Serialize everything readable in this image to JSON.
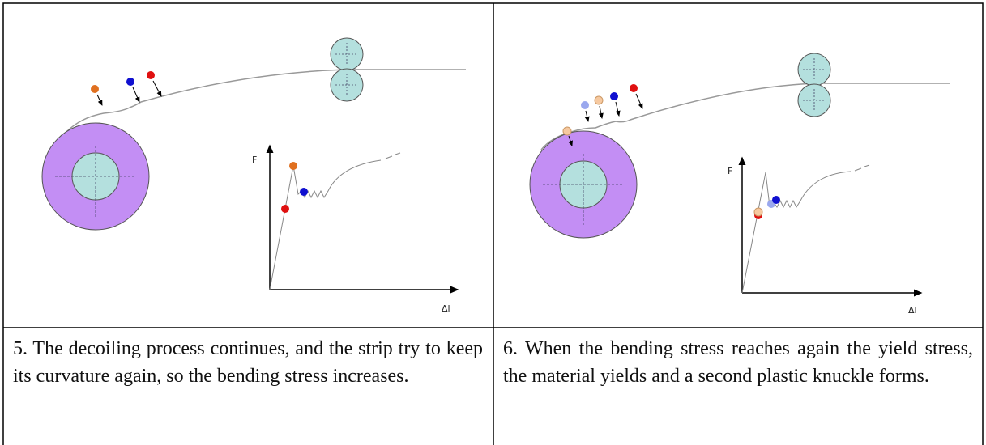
{
  "panels": [
    {
      "diagram": {
        "y_axis_label": "F",
        "x_axis_label": "Δl"
      },
      "caption": "5. The decoiling process continues, and the strip try to keep its curvature again, so the bending stress increases."
    },
    {
      "diagram": {
        "y_axis_label": "F",
        "x_axis_label": "Δl"
      },
      "caption": "6. When the bending stress reaches again the yield stress, the material yields and a second plastic knuckle forms."
    }
  ]
}
